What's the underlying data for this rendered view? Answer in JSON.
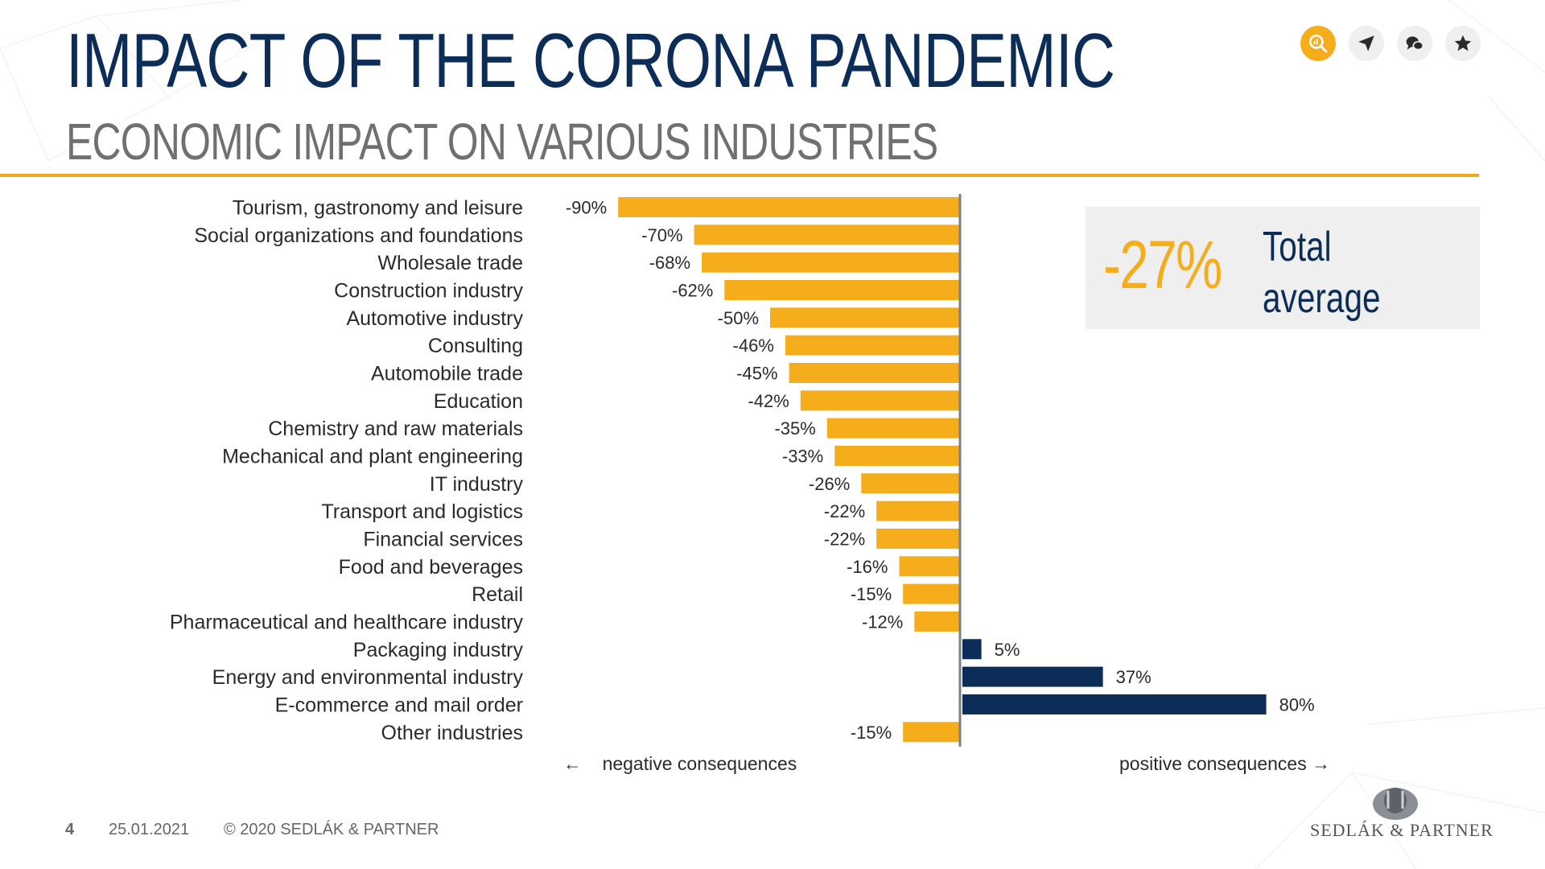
{
  "header": {
    "title": "IMPACT OF THE CORONA PANDEMIC",
    "subtitle": "ECONOMIC IMPACT ON VARIOUS INDUSTRIES"
  },
  "toolbar": {
    "icons": [
      "analytics-icon",
      "send-icon",
      "chat-icon",
      "star-icon"
    ]
  },
  "colors": {
    "negative": "#f5ad1c",
    "positive": "#0c2d57",
    "accent": "#f2a81d",
    "title": "#0c2d57"
  },
  "chart_data": {
    "type": "bar",
    "orientation": "horizontal",
    "categories": [
      "Tourism, gastronomy and leisure",
      "Social organizations and foundations",
      "Wholesale trade",
      "Construction industry",
      "Automotive industry",
      "Consulting",
      "Automobile trade",
      "Education",
      "Chemistry and raw materials",
      "Mechanical and plant engineering",
      "IT industry",
      "Transport and logistics",
      "Financial services",
      "Food and beverages",
      "Retail",
      "Pharmaceutical and healthcare industry",
      "Packaging industry",
      "Energy and environmental industry",
      "E-commerce and mail order",
      "Other industries"
    ],
    "values": [
      -90,
      -70,
      -68,
      -62,
      -50,
      -46,
      -45,
      -42,
      -35,
      -33,
      -26,
      -22,
      -22,
      -16,
      -15,
      -12,
      5,
      37,
      80,
      -15
    ],
    "value_labels": [
      "-90%",
      "-70%",
      "-68%",
      "-62%",
      "-50%",
      "-46%",
      "-45%",
      "-42%",
      "-35%",
      "-33%",
      "-26%",
      "-22%",
      "-22%",
      "-16%",
      "-15%",
      "-12%",
      "5%",
      "37%",
      "80%",
      "-15%"
    ],
    "xlim": [
      -90,
      80
    ],
    "direction_labels": {
      "negative": "negative consequences",
      "positive": "positive consequences"
    },
    "average": {
      "value": "-27%",
      "label": "Total average"
    }
  },
  "footer": {
    "page": "4",
    "date": "25.01.2021",
    "copyright": "© 2020 SEDLÁK & PARTNER"
  },
  "logo": {
    "text": "SEDLÁK & PARTNER"
  }
}
